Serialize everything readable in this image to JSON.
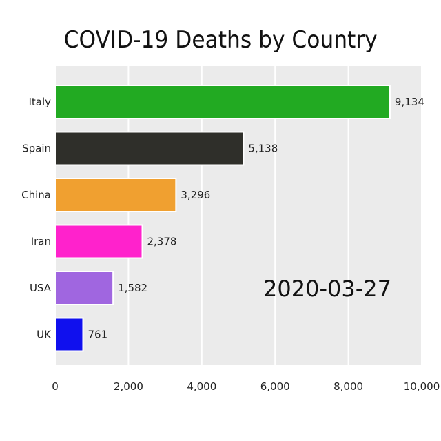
{
  "chart_data": {
    "type": "bar",
    "orientation": "horizontal",
    "title": "COVID-19 Deaths by Country",
    "date": "2020-03-27",
    "categories": [
      "Italy",
      "Spain",
      "China",
      "Iran",
      "USA",
      "UK"
    ],
    "values": [
      9134,
      5138,
      3296,
      2378,
      1582,
      761
    ],
    "value_labels": [
      "9,134",
      "5,138",
      "3,296",
      "2,378",
      "1,582",
      "761"
    ],
    "colors": [
      "#22aa22",
      "#2f2f2a",
      "#f0a030",
      "#ff22cc",
      "#a066e0",
      "#1010ee"
    ],
    "xlim": [
      0,
      10000
    ],
    "xticks": [
      0,
      2000,
      4000,
      6000,
      8000,
      10000
    ],
    "xtick_labels": [
      "0",
      "2,000",
      "4,000",
      "6,000",
      "8,000",
      "10,000"
    ],
    "grid": true,
    "background": "#ebebeb"
  }
}
